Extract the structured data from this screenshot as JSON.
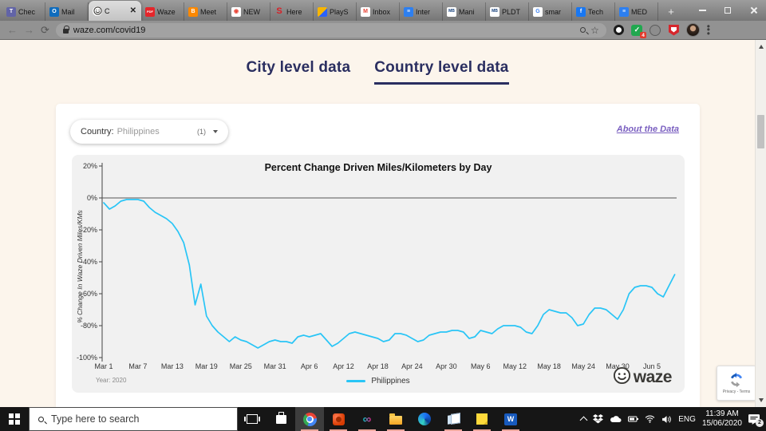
{
  "browser": {
    "active_tab_index": 2,
    "new_tab_label": "+",
    "tabs": [
      {
        "label": "Chec",
        "icon": "teams-icon",
        "chip_bg": "#6264a7",
        "glyph": "T",
        "glyph_color": "#fff"
      },
      {
        "label": "Mail",
        "icon": "outlook-icon",
        "chip_bg": "#0f6cbd",
        "glyph": "O",
        "glyph_color": "#fff"
      },
      {
        "label": "C",
        "icon": "waze-icon",
        "chip_bg": "#ffffff",
        "glyph": "",
        "glyph_color": "#333"
      },
      {
        "label": "Waze",
        "icon": "pdf-icon",
        "chip_bg": "#e5252a",
        "glyph": "PDF",
        "glyph_color": "#fff",
        "glyph_size": "4px"
      },
      {
        "label": "Meet",
        "icon": "blogger-icon",
        "chip_bg": "#fb8800",
        "glyph": "B",
        "glyph_color": "#fff"
      },
      {
        "label": "NEW",
        "icon": "map-pin-icon",
        "chip_bg": "#ffffff",
        "glyph": "◉",
        "glyph_color": "#ea4335"
      },
      {
        "label": "Here",
        "icon": "s-logo-icon",
        "chip_bg": "transparent",
        "glyph": "S",
        "glyph_color": "#d91f26",
        "glyph_size": "11px"
      },
      {
        "label": "PlayS",
        "icon": "play-icon",
        "chip_bg": "linear-gradient(135deg,#f7b500 55%,#2962ff 55%)",
        "glyph": "",
        "glyph_color": "#fff"
      },
      {
        "label": "Inbox",
        "icon": "gmail-icon",
        "chip_bg": "#ffffff",
        "glyph": "M",
        "glyph_color": "#ea4335"
      },
      {
        "label": "Inter",
        "icon": "list-lines-icon",
        "chip_bg": "#2d7ff0",
        "glyph": "≡",
        "glyph_color": "#fff"
      },
      {
        "label": "Mani",
        "icon": "mb-icon",
        "chip_bg": "#ffffff",
        "glyph": "MB",
        "glyph_color": "#16417c",
        "glyph_size": "5px"
      },
      {
        "label": "PLDT",
        "icon": "mb-icon",
        "chip_bg": "#ffffff",
        "glyph": "MB",
        "glyph_color": "#16417c",
        "glyph_size": "5px"
      },
      {
        "label": "smar",
        "icon": "google-icon",
        "chip_bg": "#ffffff",
        "glyph": "G",
        "glyph_color": "#4285f4"
      },
      {
        "label": "Tech",
        "icon": "facebook-icon",
        "chip_bg": "#1877f2",
        "glyph": "f",
        "glyph_color": "#fff"
      },
      {
        "label": "MED",
        "icon": "list-lines-icon",
        "chip_bg": "#2d7ff0",
        "glyph": "≡",
        "glyph_color": "#fff"
      }
    ],
    "toolbar": {
      "url": "waze.com/covid19",
      "extension_badge": "4"
    }
  },
  "page": {
    "nav": {
      "tabs": [
        {
          "label": "City level data"
        },
        {
          "label": "Country level data",
          "active": true
        }
      ]
    },
    "controls": {
      "country_label": "Country:",
      "country_value": "Philippines",
      "country_count": "(1)",
      "about_link": "About the Data"
    },
    "footer": {
      "brand": "waze",
      "recaptcha_note": "Privacy - Terms"
    }
  },
  "chart_data": {
    "type": "line",
    "title": "Percent Change Driven Miles/Kilometers by Day",
    "ylabel": "% Change In Waze Driven Miles/KMs",
    "xlabel": "",
    "year_note": "Year: 2020",
    "ylim": [
      -100,
      20
    ],
    "grid": false,
    "legend_position": "bottom-center",
    "y_ticks": [
      "20%",
      "0%",
      "-20%",
      "-40%",
      "-60%",
      "-80%",
      "-100%"
    ],
    "x_tick_labels": [
      "Mar 1",
      "Mar 7",
      "Mar 13",
      "Mar 19",
      "Mar 25",
      "Mar 31",
      "Apr 6",
      "Apr 12",
      "Apr 18",
      "Apr 24",
      "Apr 30",
      "May 6",
      "May 12",
      "May 18",
      "May 24",
      "May 30",
      "Jun 5"
    ],
    "x_tick_days": [
      0,
      6,
      12,
      18,
      24,
      30,
      36,
      42,
      48,
      54,
      60,
      66,
      72,
      78,
      84,
      90,
      96
    ],
    "x_start_date": "Mar 1",
    "x_end_date": "Jun 9",
    "series": [
      {
        "name": "Philippines",
        "color": "#29c5f6",
        "values": [
          -3,
          -7,
          -5,
          -2,
          -1,
          -1,
          -1,
          -2,
          -6,
          -9,
          -11,
          -13,
          -16,
          -21,
          -28,
          -42,
          -67,
          -54,
          -74,
          -80,
          -84,
          -87,
          -90,
          -87,
          -89,
          -90,
          -92,
          -94,
          -92,
          -90,
          -89,
          -90,
          -90,
          -91,
          -87,
          -86,
          -87,
          -86,
          -85,
          -89,
          -93,
          -91,
          -88,
          -85,
          -84,
          -85,
          -86,
          -87,
          -88,
          -90,
          -89,
          -85,
          -85,
          -86,
          -88,
          -90,
          -89,
          -86,
          -85,
          -84,
          -84,
          -83,
          -83,
          -84,
          -88,
          -87,
          -83,
          -84,
          -85,
          -82,
          -80,
          -80,
          -80,
          -81,
          -84,
          -85,
          -80,
          -73,
          -70,
          -71,
          -72,
          -72,
          -75,
          -80,
          -79,
          -73,
          -69,
          -69,
          -70,
          -73,
          -76,
          -70,
          -60,
          -56,
          -55,
          -55,
          -56,
          -60,
          -62,
          -55,
          -48
        ]
      }
    ]
  },
  "taskbar": {
    "search_placeholder": "Type here to search",
    "language": "ENG",
    "time": "11:39 AM",
    "date": "15/06/2020",
    "notification_badge": "2"
  }
}
